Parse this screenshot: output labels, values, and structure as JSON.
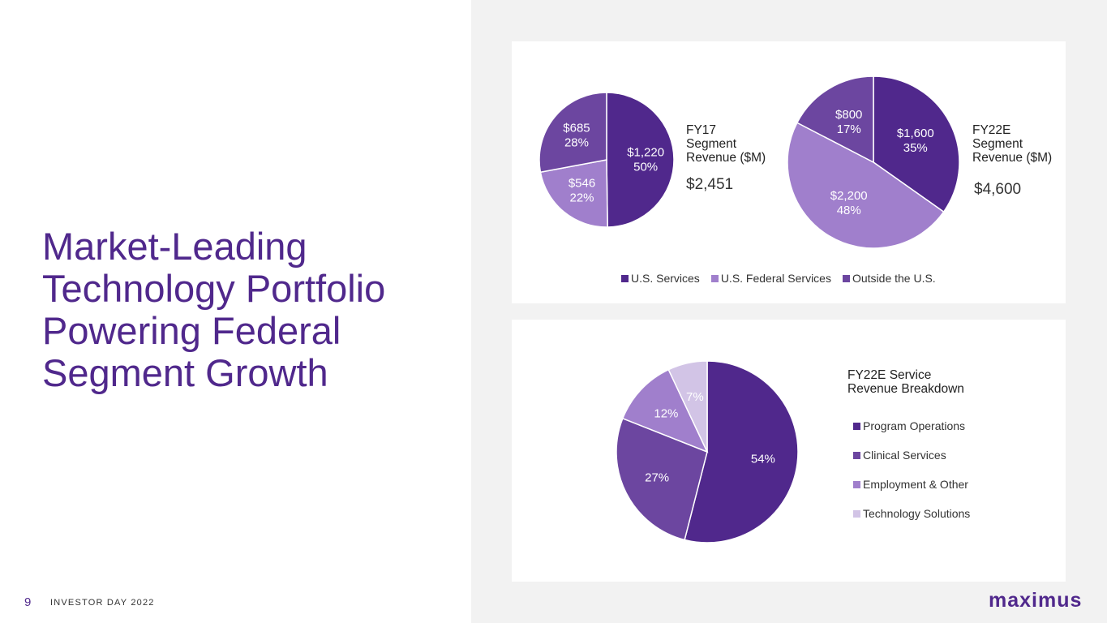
{
  "headline": [
    "Market-Leading",
    "Technology Portfolio",
    "Powering Federal",
    "Segment Growth"
  ],
  "footer": {
    "page_number": "9",
    "label": "INVESTOR DAY 2022",
    "logo": "maximus"
  },
  "colors": {
    "brand": "#50288c",
    "light_purple": "#a07fcc",
    "mid_purple": "#6c46a0",
    "pale_purple": "#d2c4e6"
  },
  "chart_data": [
    {
      "type": "pie",
      "title": "FY17\nSegment\nRevenue ($M)",
      "total_label": "$2,451",
      "categories": [
        "U.S. Services",
        "U.S. Federal Services",
        "Outside the U.S."
      ],
      "values": [
        1220,
        546,
        685
      ],
      "value_labels": [
        "$1,220",
        "$546",
        "$685"
      ],
      "percent_labels": [
        "50%",
        "22%",
        "28%"
      ],
      "colors": [
        "#50288c",
        "#a07fcc",
        "#6c46a0"
      ]
    },
    {
      "type": "pie",
      "title": "FY22E\nSegment\nRevenue ($M)",
      "total_label": "$4,600",
      "categories": [
        "U.S. Services",
        "U.S. Federal Services",
        "Outside the U.S."
      ],
      "values": [
        1600,
        2200,
        800
      ],
      "value_labels": [
        "$1,600",
        "$2,200",
        "$800"
      ],
      "percent_labels": [
        "35%",
        "48%",
        "17%"
      ],
      "colors": [
        "#50288c",
        "#a07fcc",
        "#6c46a0"
      ]
    },
    {
      "type": "pie",
      "title": "FY22E Service\nRevenue Breakdown",
      "categories": [
        "Program Operations",
        "Clinical Services",
        "Employment & Other",
        "Technology Solutions"
      ],
      "values": [
        54,
        27,
        12,
        7
      ],
      "percent_labels": [
        "54%",
        "27%",
        "12%",
        "7%"
      ],
      "colors": [
        "#50288c",
        "#6c46a0",
        "#a07fcc",
        "#d2c4e6"
      ]
    }
  ],
  "legend_top": [
    {
      "label": "U.S. Services",
      "color": "#50288c"
    },
    {
      "label": "U.S. Federal Services",
      "color": "#a07fcc"
    },
    {
      "label": "Outside the U.S.",
      "color": "#6c46a0"
    }
  ]
}
